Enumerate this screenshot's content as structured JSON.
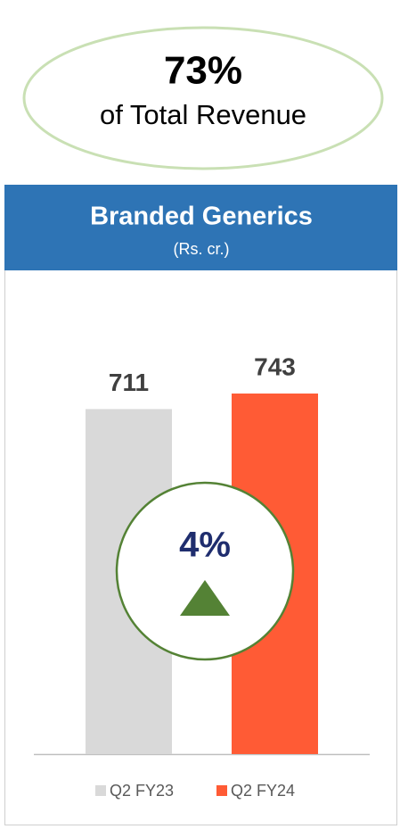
{
  "chart_data": {
    "type": "bar",
    "share": "73%",
    "share_label": "of Total Revenue",
    "title": "Branded Generics",
    "subtitle": "(Rs. cr.)",
    "categories": [
      "Q2 FY23",
      "Q2 FY24"
    ],
    "values": [
      711,
      743
    ],
    "colors": [
      "#d9d9d9",
      "#ff5b35"
    ],
    "growth": "4%"
  }
}
